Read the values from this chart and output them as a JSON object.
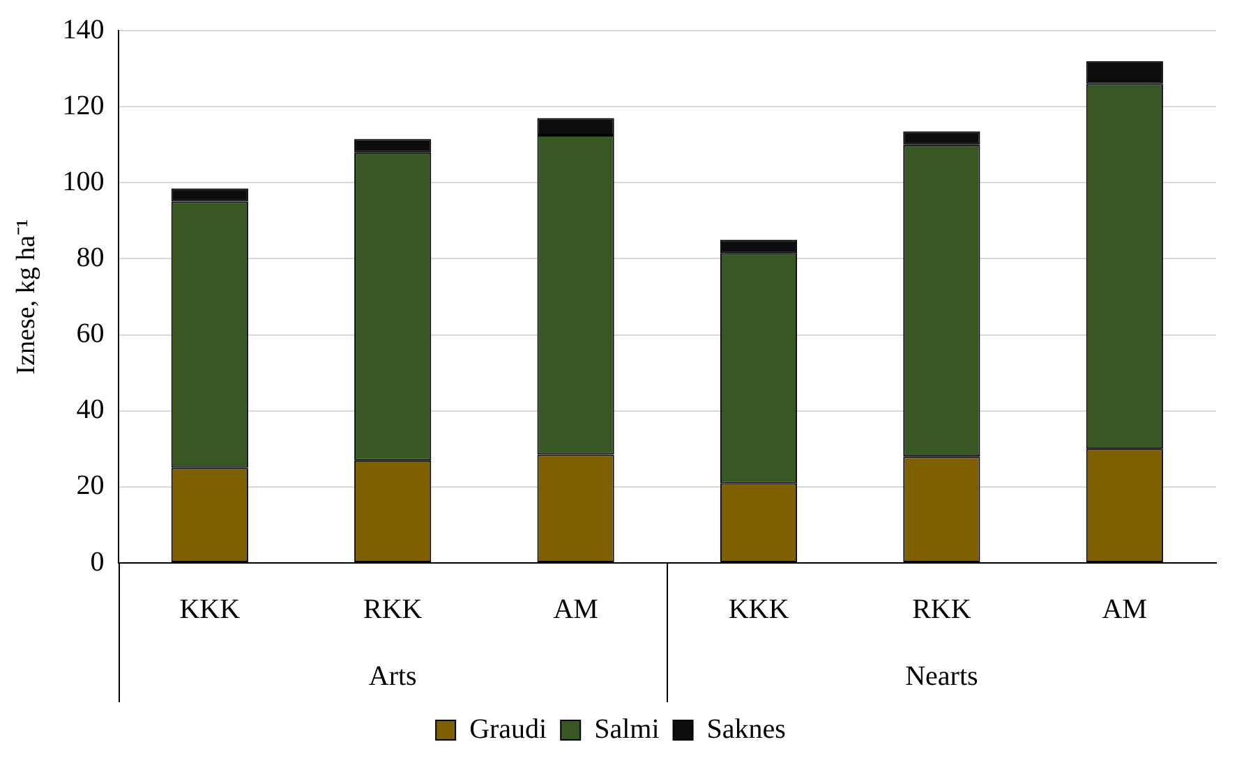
{
  "chart_data": {
    "type": "bar",
    "stacked": true,
    "ylabel": "Iznese, kg ha⁻¹",
    "categories": [
      "KKK",
      "RKK",
      "AM",
      "KKK",
      "RKK",
      "AM"
    ],
    "annotations": [
      "Arts",
      "Nearts"
    ],
    "series": [
      {
        "name": "Graudi",
        "color": "#7f6000",
        "values": [
          25,
          27,
          28.5,
          21,
          28,
          30
        ]
      },
      {
        "name": "Salmi",
        "color": "#385723",
        "values": [
          70,
          81,
          84,
          60.5,
          82,
          96
        ]
      },
      {
        "name": "Saknes",
        "color": "#0d0d0d",
        "values": [
          3.5,
          3.5,
          4.5,
          3.5,
          3.5,
          6
        ]
      }
    ],
    "ylim": [
      0,
      140
    ],
    "yticks": [
      0,
      20,
      40,
      60,
      80,
      100,
      120,
      140
    ],
    "grid": "y",
    "legend": "bottom"
  }
}
